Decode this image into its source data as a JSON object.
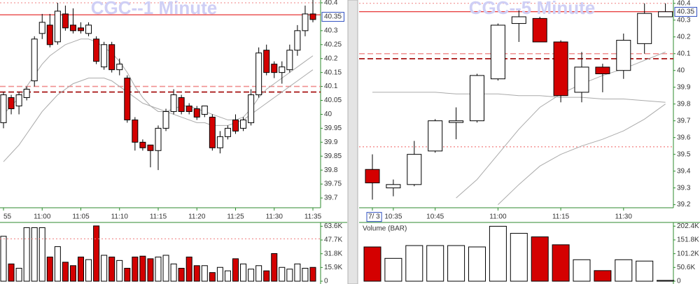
{
  "chart_data": [
    {
      "type": "candlestick",
      "title": "CGC--1 Minute",
      "categories": [
        "55",
        null,
        null,
        null,
        null,
        "11:00",
        null,
        null,
        null,
        null,
        "11:05",
        null,
        null,
        null,
        null,
        "11:10",
        null,
        null,
        null,
        null,
        "11:15",
        null,
        null,
        null,
        null,
        "11:20",
        null,
        null,
        null,
        null,
        "11:25",
        null,
        null,
        null,
        null,
        "11:30",
        null,
        null,
        null,
        null,
        "11:35"
      ],
      "open": [
        39.97,
        40.06,
        40.03,
        40.06,
        40.12,
        40.29,
        40.32,
        40.26,
        40.36,
        40.32,
        40.31,
        40.29,
        40.27,
        40.17,
        40.25,
        40.16,
        40.13,
        39.98,
        39.9,
        39.89,
        39.87,
        39.95,
        40.01,
        40.06,
        40.03,
        40.02,
        40.0,
        39.99,
        39.88,
        39.92,
        39.98,
        39.95,
        39.97,
        40.07,
        40.23,
        40.18,
        40.15,
        40.16,
        40.23,
        40.3,
        40.36
      ],
      "high": [
        40.08,
        40.07,
        40.08,
        40.1,
        40.28,
        40.36,
        40.36,
        40.4,
        40.39,
        40.38,
        40.33,
        40.33,
        40.28,
        40.26,
        40.26,
        40.2,
        40.14,
        39.99,
        39.91,
        39.89,
        39.96,
        40.02,
        40.09,
        40.07,
        40.04,
        40.03,
        40.03,
        40.0,
        39.94,
        39.96,
        40.0,
        39.99,
        40.09,
        40.24,
        40.25,
        40.19,
        40.19,
        40.25,
        40.32,
        40.39,
        40.41
      ],
      "low": [
        39.95,
        40.0,
        40.0,
        40.05,
        40.1,
        40.27,
        40.24,
        40.25,
        40.3,
        40.29,
        40.29,
        40.28,
        40.18,
        40.16,
        40.15,
        40.14,
        39.97,
        39.87,
        39.87,
        39.81,
        39.8,
        39.94,
        40.0,
        40.0,
        40.0,
        39.98,
        39.99,
        39.87,
        39.86,
        39.91,
        39.93,
        39.94,
        39.96,
        40.06,
        40.14,
        40.13,
        40.11,
        40.15,
        40.21,
        40.28,
        40.33
      ],
      "close": [
        40.07,
        40.02,
        40.07,
        40.09,
        40.27,
        40.33,
        40.25,
        40.37,
        40.31,
        40.3,
        40.3,
        40.32,
        40.19,
        40.25,
        40.16,
        40.18,
        39.98,
        39.9,
        39.88,
        39.87,
        39.95,
        40.01,
        40.07,
        40.01,
        40.01,
        39.99,
        40.03,
        39.88,
        39.92,
        39.95,
        39.94,
        39.98,
        40.07,
        40.22,
        40.15,
        40.15,
        40.17,
        40.23,
        40.3,
        40.36,
        40.34
      ],
      "up_color": "#ffffff",
      "down_color": "#d40000",
      "ylim": [
        39.67,
        40.41
      ],
      "yticks": [
        40.4,
        40.3,
        40.25,
        40.2,
        40.15,
        40.1,
        40.05,
        40,
        39.95,
        39.9,
        39.85,
        39.8,
        39.75,
        39.7
      ],
      "last_price": 40.35,
      "levels": [
        {
          "value": 40.4,
          "color": "#f08080",
          "style": "dotted"
        },
        {
          "value": 40.357,
          "color": "#e00000",
          "style": "solid"
        },
        {
          "value": 40.1,
          "color": "#f09090",
          "style": "dashed"
        },
        {
          "value": 40.08,
          "color": "#a00000",
          "style": "dashed"
        }
      ],
      "overlays": [
        {
          "color": "#aaaaaa",
          "values": [
            40.0,
            40.03,
            40.06,
            40.1,
            40.14,
            40.18,
            40.21,
            40.23,
            40.25,
            40.26,
            40.27,
            40.27,
            40.26,
            40.24,
            40.22,
            40.19,
            40.15,
            40.1,
            40.06,
            40.03,
            40.01,
            40.01,
            40.02,
            40.03,
            40.03,
            40.02,
            40.01,
            40.0,
            39.99,
            39.98,
            39.98,
            39.99,
            40.02,
            40.06,
            40.09,
            40.11,
            40.13,
            40.15,
            40.17,
            40.19,
            40.21
          ]
        },
        {
          "color": "#aaaaaa",
          "values": [
            39.83,
            39.86,
            39.89,
            39.93,
            39.97,
            40.01,
            40.04,
            40.07,
            40.09,
            40.11,
            40.12,
            40.13,
            40.13,
            40.13,
            40.12,
            40.1,
            40.08,
            40.06,
            40.04,
            40.03,
            40.02,
            40.01,
            40.0,
            39.99,
            39.98,
            39.97,
            39.97,
            39.96,
            39.96,
            39.96,
            39.97,
            39.98,
            40.0,
            40.02,
            40.04,
            40.06,
            40.08,
            40.1,
            40.12,
            40.14,
            40.16
          ]
        }
      ],
      "volume": {
        "values": [
          52000,
          20000,
          15000,
          62000,
          62000,
          62000,
          28000,
          40000,
          22000,
          18000,
          28000,
          25000,
          64000,
          30000,
          28000,
          24000,
          15000,
          28000,
          29000,
          26000,
          28000,
          30000,
          20000,
          15000,
          28000,
          18000,
          18000,
          10000,
          16000,
          12000,
          26000,
          20000,
          14000,
          18000,
          12000,
          32000,
          16000,
          14000,
          20000,
          15000,
          16000
        ],
        "ylim": [
          0,
          68000
        ],
        "yticks": [
          {
            "value": 63600,
            "label": "63.6K"
          },
          {
            "value": 47700,
            "label": "47.7K"
          },
          {
            "value": 31800,
            "label": "31.8K"
          },
          {
            "value": 15900,
            "label": "15.9K"
          },
          0
        ],
        "level": {
          "value": 49000,
          "color": "#f08080"
        }
      }
    },
    {
      "type": "candlestick",
      "title": "CGC--5 Minute",
      "categories": [
        "7/ 3",
        "10:35",
        null,
        "10:45",
        null,
        null,
        "11:00",
        null,
        null,
        "11:15",
        null,
        null,
        "11:30",
        null,
        null
      ],
      "open": [
        39.41,
        39.3,
        39.32,
        39.52,
        39.69,
        39.7,
        39.95,
        40.28,
        40.31,
        40.17,
        39.87,
        40.02,
        40.0,
        40.16,
        40.32
      ],
      "high": [
        39.5,
        39.35,
        39.58,
        39.71,
        39.78,
        39.98,
        40.28,
        40.37,
        40.32,
        40.18,
        40.11,
        40.04,
        40.22,
        40.4,
        40.4
      ],
      "low": [
        39.23,
        39.25,
        39.31,
        39.51,
        39.59,
        39.69,
        39.94,
        40.17,
        40.17,
        39.81,
        39.81,
        39.87,
        39.95,
        40.1,
        40.32
      ],
      "close": [
        39.33,
        39.32,
        39.5,
        39.7,
        39.7,
        39.97,
        40.27,
        40.32,
        40.17,
        39.85,
        40.02,
        39.98,
        40.18,
        40.34,
        40.35
      ],
      "up_color": "#ffffff",
      "down_color": "#d40000",
      "ylim": [
        39.19,
        40.42
      ],
      "yticks": [
        40.4,
        40.3,
        40.2,
        40.1,
        40,
        39.9,
        39.8,
        39.7,
        39.6,
        39.5,
        39.4,
        39.3,
        39.2
      ],
      "last_price": 40.35,
      "levels": [
        {
          "value": 40.4,
          "color": "#f08080",
          "style": "dotted"
        },
        {
          "value": 40.35,
          "color": "#e00000",
          "style": "solid"
        },
        {
          "value": 40.1,
          "color": "#f09090",
          "style": "dashed"
        },
        {
          "value": 40.07,
          "color": "#a00000",
          "style": "dashed"
        },
        {
          "value": 39.545,
          "color": "#f06060",
          "style": "dotted"
        }
      ],
      "overlays": [
        {
          "color": "#aaaaaa",
          "values": [
            39.87,
            39.87,
            39.87,
            39.87,
            39.86,
            39.86,
            39.86,
            39.85,
            39.85,
            39.84,
            39.84,
            39.83,
            39.83,
            39.82,
            39.81
          ]
        },
        {
          "color": "#aaaaaa",
          "values": [
            null,
            null,
            null,
            null,
            39.24,
            39.35,
            39.5,
            39.65,
            39.78,
            39.86,
            39.92,
            39.97,
            40.01,
            40.06,
            40.11
          ]
        },
        {
          "color": "#aaaaaa",
          "values": [
            null,
            null,
            null,
            null,
            null,
            null,
            39.2,
            39.32,
            39.43,
            39.5,
            39.55,
            39.59,
            39.64,
            39.71,
            39.8
          ]
        }
      ],
      "volume": {
        "label": "Volume (BAR)",
        "values": [
          126000,
          84000,
          131000,
          131000,
          131000,
          126000,
          202000,
          176000,
          163000,
          134000,
          79000,
          39000,
          79000,
          74000,
          3000
        ],
        "ylim": [
          0,
          216000
        ],
        "yticks": [
          {
            "value": 202400,
            "label": "202.4K"
          },
          {
            "value": 151800,
            "label": "151.8K"
          },
          {
            "value": 101200,
            "label": "101.2K"
          },
          {
            "value": 50600,
            "label": "50.6K"
          },
          0
        ]
      }
    }
  ]
}
